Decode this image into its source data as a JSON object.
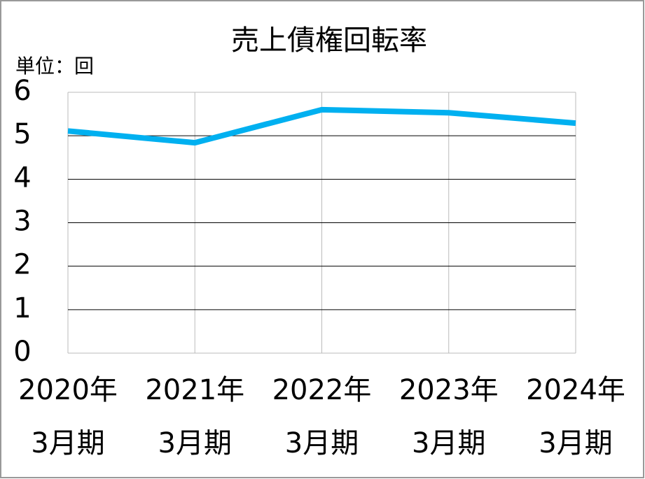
{
  "chart_data": {
    "type": "line",
    "title": "売上債権回転率",
    "unit_label": "単位：回",
    "categories": [
      [
        "2020年",
        "3月期"
      ],
      [
        "2021年",
        "3月期"
      ],
      [
        "2022年",
        "3月期"
      ],
      [
        "2023年",
        "3月期"
      ],
      [
        "2024年",
        "3月期"
      ]
    ],
    "series": [
      {
        "name": "売上債権回転率",
        "color": "#00b0f0",
        "values": [
          5.11,
          4.84,
          5.6,
          5.53,
          5.29
        ]
      }
    ],
    "ylim": [
      0,
      6
    ],
    "yticks": [
      0,
      1,
      2,
      3,
      4,
      5,
      6
    ],
    "grid": true
  }
}
